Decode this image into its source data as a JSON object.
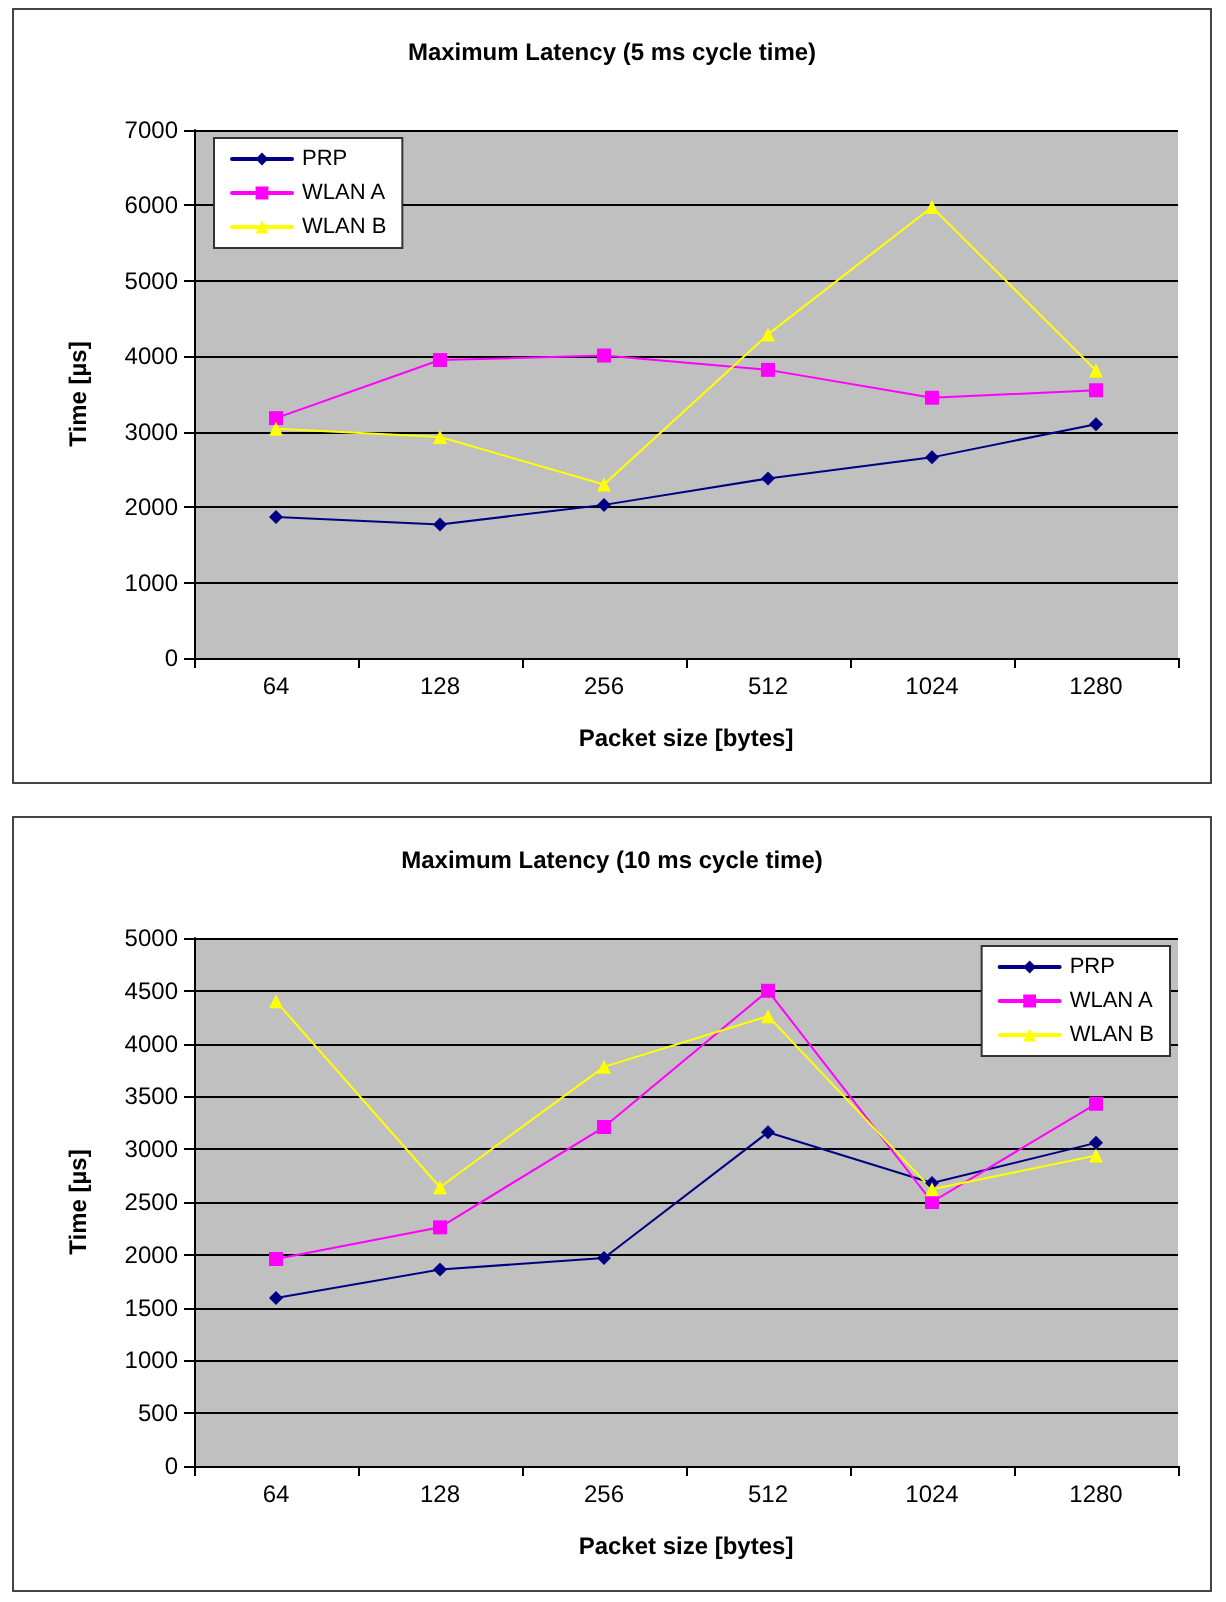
{
  "chart_data": [
    {
      "type": "line",
      "title": "Maximum Latency (5 ms cycle time)",
      "xlabel": "Packet size [bytes]",
      "ylabel": "Time [µs]",
      "categories": [
        "64",
        "128",
        "256",
        "512",
        "1024",
        "1280"
      ],
      "series": [
        {
          "name": "PRP",
          "color": "#000080",
          "marker": "diamond",
          "values": [
            1870,
            1770,
            2030,
            2380,
            2660,
            3100
          ]
        },
        {
          "name": "WLAN A",
          "color": "#ff00ff",
          "marker": "square",
          "values": [
            3180,
            3950,
            4010,
            3820,
            3450,
            3550
          ]
        },
        {
          "name": "WLAN B",
          "color": "#ffff00",
          "marker": "triangle",
          "values": [
            3040,
            2930,
            2300,
            4290,
            5980,
            3810
          ]
        }
      ],
      "ylim": [
        0,
        7000
      ],
      "yticks": [
        0,
        1000,
        2000,
        3000,
        4000,
        5000,
        6000,
        7000
      ],
      "grid": "y",
      "legend": "top left",
      "line_style": "solid"
    },
    {
      "type": "line",
      "title": "Maximum Latency (10 ms cycle time)",
      "xlabel": "Packet size [bytes]",
      "ylabel": "Time [µs]",
      "categories": [
        "64",
        "128",
        "256",
        "512",
        "1024",
        "1280"
      ],
      "series": [
        {
          "name": "PRP",
          "color": "#000080",
          "marker": "diamond",
          "values": [
            1590,
            1860,
            1970,
            3160,
            2680,
            3060
          ]
        },
        {
          "name": "WLAN A",
          "color": "#ff00ff",
          "marker": "square",
          "values": [
            1960,
            2260,
            3210,
            4500,
            2500,
            3430
          ]
        },
        {
          "name": "WLAN B",
          "color": "#ffff00",
          "marker": "triangle",
          "values": [
            4400,
            2640,
            3780,
            4260,
            2620,
            2940
          ]
        }
      ],
      "ylim": [
        0,
        5000
      ],
      "yticks": [
        0,
        500,
        1000,
        1500,
        2000,
        2500,
        3000,
        3500,
        4000,
        4500,
        5000
      ],
      "grid": "y",
      "legend": "top right",
      "line_style": "solid"
    }
  ]
}
